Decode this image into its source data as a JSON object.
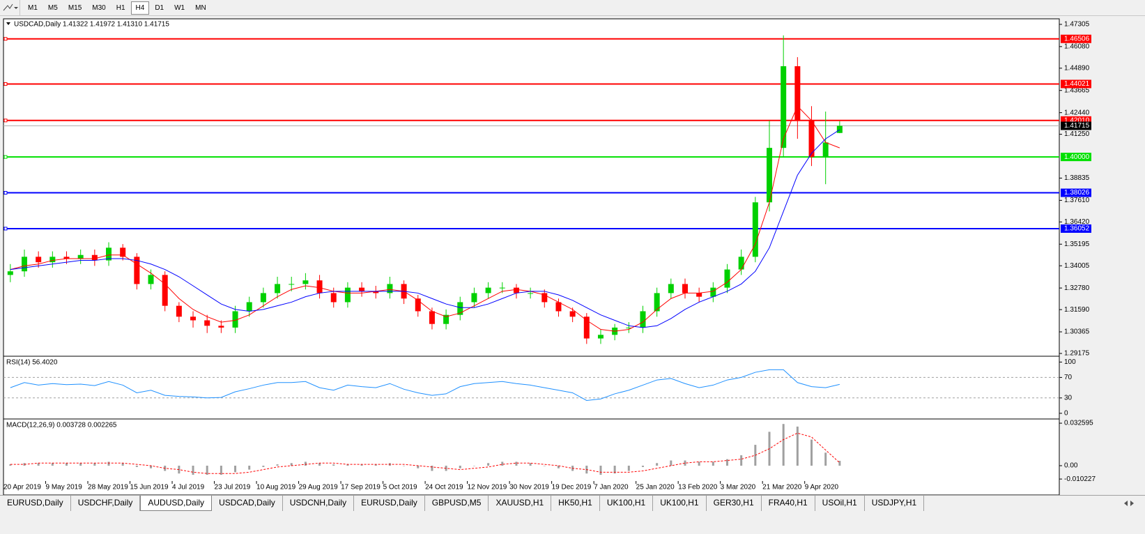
{
  "toolbar": {
    "timeframes": [
      "M1",
      "M5",
      "M15",
      "M30",
      "H1",
      "H4",
      "D1",
      "W1",
      "MN"
    ]
  },
  "tabs": [
    "EURUSD,Daily",
    "USDCHF,Daily",
    "AUDUSD,Daily",
    "USDCAD,Daily",
    "USDCNH,Daily",
    "EURUSD,Daily",
    "GBPUSD,M5",
    "XAUUSD,H1",
    "HK50,H1",
    "UK100,H1",
    "UK100,H1",
    "GER30,H1",
    "FRA40,H1",
    "USOil,H1",
    "USDJPY,H1"
  ],
  "chart_data": [
    {
      "type": "candlestick",
      "title": "USDCAD,Daily  1.41322 1.41972 1.41310 1.41715",
      "categories": [
        null,
        "20 Apr 2019",
        null,
        null,
        "9 May 2019",
        null,
        null,
        "28 May 2019",
        null,
        null,
        "15 Jun 2019",
        null,
        null,
        "4 Jul 2019",
        null,
        null,
        "23 Jul 2019",
        null,
        null,
        "10 Aug 2019",
        null,
        null,
        "29 Aug 2019",
        null,
        null,
        "17 Sep 2019",
        null,
        null,
        "5 Oct 2019",
        null,
        null,
        "24 Oct 2019",
        null,
        null,
        "12 Nov 2019",
        null,
        null,
        "30 Nov 2019",
        null,
        null,
        "19 Dec 2019",
        null,
        null,
        "7 Jan 2020",
        null,
        null,
        "25 Jan 2020",
        null,
        null,
        "13 Feb 2020",
        null,
        null,
        "3 Mar 2020",
        null,
        null,
        "21 Mar 2020",
        null,
        null,
        "9 Apr 2020",
        null
      ],
      "open": [
        1.335,
        1.337,
        1.345,
        1.342,
        1.345,
        1.344,
        1.346,
        1.343,
        1.35,
        1.345,
        1.33,
        1.335,
        1.318,
        1.312,
        1.31,
        1.307,
        1.306,
        1.315,
        1.32,
        1.325,
        1.33,
        1.33,
        1.332,
        1.325,
        1.32,
        1.328,
        1.326,
        1.325,
        1.33,
        1.322,
        1.315,
        1.308,
        1.313,
        1.32,
        1.325,
        1.328,
        1.328,
        1.325,
        1.325,
        1.32,
        1.315,
        1.312,
        1.3,
        1.302,
        1.306,
        1.306,
        1.315,
        1.325,
        1.33,
        1.325,
        1.323,
        1.328,
        1.338,
        1.345,
        1.375,
        1.405,
        1.45,
        1.42,
        1.4,
        1.41322
      ],
      "high": [
        1.341,
        1.349,
        1.348,
        1.348,
        1.348,
        1.349,
        1.349,
        1.353,
        1.352,
        1.347,
        1.338,
        1.337,
        1.32,
        1.315,
        1.313,
        1.31,
        1.318,
        1.323,
        1.328,
        1.334,
        1.334,
        1.336,
        1.335,
        1.328,
        1.331,
        1.331,
        1.329,
        1.334,
        1.332,
        1.324,
        1.317,
        1.316,
        1.323,
        1.328,
        1.331,
        1.331,
        1.33,
        1.328,
        1.327,
        1.322,
        1.317,
        1.314,
        1.305,
        1.308,
        1.309,
        1.318,
        1.328,
        1.333,
        1.333,
        1.328,
        1.331,
        1.341,
        1.349,
        1.378,
        1.42,
        1.467,
        1.455,
        1.428,
        1.425,
        1.41972
      ],
      "low": [
        1.331,
        1.334,
        1.339,
        1.339,
        1.341,
        1.341,
        1.34,
        1.34,
        1.343,
        1.327,
        1.327,
        1.315,
        1.309,
        1.306,
        1.303,
        1.303,
        1.303,
        1.312,
        1.317,
        1.322,
        1.326,
        1.327,
        1.322,
        1.317,
        1.317,
        1.323,
        1.322,
        1.322,
        1.319,
        1.312,
        1.305,
        1.305,
        1.31,
        1.317,
        1.322,
        1.325,
        1.322,
        1.322,
        1.317,
        1.312,
        1.309,
        1.297,
        1.297,
        1.299,
        1.303,
        1.303,
        1.312,
        1.322,
        1.322,
        1.32,
        1.32,
        1.325,
        1.335,
        1.342,
        1.37,
        1.4,
        1.41,
        1.395,
        1.385,
        1.4131
      ],
      "close": [
        1.337,
        1.345,
        1.342,
        1.345,
        1.344,
        1.346,
        1.343,
        1.35,
        1.345,
        1.33,
        1.335,
        1.318,
        1.312,
        1.31,
        1.307,
        1.306,
        1.315,
        1.32,
        1.325,
        1.33,
        1.33,
        1.332,
        1.325,
        1.32,
        1.328,
        1.326,
        1.325,
        1.33,
        1.322,
        1.315,
        1.308,
        1.313,
        1.32,
        1.325,
        1.328,
        1.328,
        1.325,
        1.325,
        1.32,
        1.315,
        1.312,
        1.3,
        1.302,
        1.306,
        1.306,
        1.315,
        1.325,
        1.33,
        1.325,
        1.323,
        1.328,
        1.338,
        1.345,
        1.375,
        1.405,
        1.45,
        1.42,
        1.4,
        1.408,
        1.41715
      ],
      "up_color": "#00d000",
      "down_color": "#ff0000",
      "series": [
        {
          "color": "#ff0000",
          "values": [
            1.338,
            1.34,
            1.341,
            1.343,
            1.344,
            1.344,
            1.344,
            1.346,
            1.346,
            1.341,
            1.336,
            1.33,
            1.322,
            1.316,
            1.312,
            1.309,
            1.31,
            1.313,
            1.318,
            1.323,
            1.327,
            1.329,
            1.328,
            1.326,
            1.325,
            1.325,
            1.326,
            1.327,
            1.326,
            1.321,
            1.315,
            1.312,
            1.314,
            1.318,
            1.322,
            1.326,
            1.327,
            1.326,
            1.324,
            1.32,
            1.316,
            1.31,
            1.305,
            1.304,
            1.305,
            1.309,
            1.316,
            1.322,
            1.325,
            1.325,
            1.326,
            1.331,
            1.338,
            1.352,
            1.375,
            1.41,
            1.428,
            1.42,
            1.408,
            1.405
          ]
        },
        {
          "color": "#0000ff",
          "values": [
            1.338,
            1.339,
            1.34,
            1.341,
            1.342,
            1.343,
            1.343,
            1.344,
            1.344,
            1.343,
            1.341,
            1.338,
            1.334,
            1.329,
            1.324,
            1.319,
            1.316,
            1.315,
            1.316,
            1.318,
            1.32,
            1.323,
            1.325,
            1.326,
            1.326,
            1.326,
            1.326,
            1.326,
            1.326,
            1.325,
            1.322,
            1.319,
            1.317,
            1.317,
            1.319,
            1.322,
            1.325,
            1.326,
            1.326,
            1.324,
            1.321,
            1.317,
            1.313,
            1.31,
            1.307,
            1.306,
            1.307,
            1.311,
            1.316,
            1.32,
            1.323,
            1.326,
            1.33,
            1.337,
            1.35,
            1.37,
            1.39,
            1.402,
            1.41,
            1.415
          ]
        }
      ],
      "levels": [
        {
          "value": 1.46506,
          "label": "1.46506",
          "color": "#ff0000"
        },
        {
          "value": 1.44021,
          "label": "1.44021",
          "color": "#ff0000"
        },
        {
          "value": 1.4201,
          "label": "1.42010",
          "color": "#ff0000"
        },
        {
          "value": 1.4,
          "label": "1.40000",
          "color": "#00e000"
        },
        {
          "value": 1.38026,
          "label": "1.38026",
          "color": "#0000ff"
        },
        {
          "value": 1.36052,
          "label": "1.36052",
          "color": "#0000ff"
        }
      ],
      "current_price": 1.41715,
      "ylim": [
        1.2906,
        1.4761
      ],
      "yticks": [
        1.47305,
        {
          "value": 1.4608,
          "label": "1.46080"
        },
        {
          "value": 1.4489,
          "label": "1.44890"
        },
        1.43665,
        {
          "value": 1.4244,
          "label": "1.42440"
        },
        {
          "value": 1.4125,
          "label": "1.41250"
        },
        1.38835,
        {
          "value": 1.3761,
          "label": "1.37610"
        },
        {
          "value": 1.3642,
          "label": "1.36420"
        },
        1.35195,
        1.34005,
        {
          "value": 1.3278,
          "label": "1.32780"
        },
        {
          "value": 1.3159,
          "label": "1.31590"
        },
        1.30365,
        1.29175
      ]
    },
    {
      "type": "line",
      "title": "RSI(14) 56.4020",
      "color": "#1e90ff",
      "values": [
        50,
        60,
        55,
        58,
        56,
        57,
        54,
        62,
        55,
        40,
        45,
        35,
        33,
        32,
        30,
        31,
        42,
        48,
        55,
        60,
        60,
        62,
        50,
        45,
        55,
        52,
        50,
        58,
        47,
        40,
        35,
        38,
        52,
        58,
        60,
        62,
        58,
        55,
        50,
        45,
        40,
        25,
        28,
        38,
        45,
        55,
        65,
        68,
        58,
        50,
        55,
        65,
        70,
        80,
        85,
        85,
        60,
        52,
        50,
        56.4
      ],
      "ylim": [
        -7,
        110
      ],
      "yticks": [
        100,
        70,
        30,
        0
      ]
    },
    {
      "type": "macd",
      "title": "MACD(12,26,9) 0.003728 0.002265",
      "series": [
        {
          "kind": "bar",
          "color": "#a0a0a0",
          "values": [
            0.001,
            0.002,
            0.002,
            0.002,
            0.002,
            0.002,
            0.002,
            0.003,
            0.002,
            -0.001,
            -0.002,
            -0.004,
            -0.006,
            -0.007,
            -0.007,
            -0.007,
            -0.005,
            -0.003,
            -0.001,
            0.001,
            0.002,
            0.003,
            0.002,
            0.001,
            0.001,
            0.001,
            0.001,
            0.002,
            0.0,
            -0.002,
            -0.004,
            -0.004,
            -0.002,
            0.0,
            0.002,
            0.003,
            0.003,
            0.002,
            0.0,
            -0.002,
            -0.004,
            -0.006,
            -0.007,
            -0.006,
            -0.004,
            -0.001,
            0.002,
            0.004,
            0.004,
            0.003,
            0.003,
            0.005,
            0.008,
            0.016,
            0.026,
            0.032,
            0.03,
            0.02,
            0.01,
            0.003728
          ]
        },
        {
          "kind": "line",
          "color": "#ff0000",
          "values": [
            0.001,
            0.001,
            0.002,
            0.002,
            0.002,
            0.002,
            0.002,
            0.002,
            0.002,
            0.001,
            0.0,
            -0.002,
            -0.003,
            -0.005,
            -0.006,
            -0.006,
            -0.006,
            -0.005,
            -0.003,
            -0.001,
            0.0,
            0.001,
            0.002,
            0.002,
            0.001,
            0.001,
            0.001,
            0.001,
            0.001,
            0.0,
            -0.001,
            -0.002,
            -0.003,
            -0.002,
            -0.001,
            0.001,
            0.002,
            0.002,
            0.001,
            0.0,
            -0.002,
            -0.003,
            -0.005,
            -0.005,
            -0.005,
            -0.004,
            -0.002,
            0.0,
            0.002,
            0.003,
            0.003,
            0.004,
            0.005,
            0.008,
            0.013,
            0.02,
            0.025,
            0.022,
            0.012,
            0.002265
          ]
        }
      ],
      "ylim": [
        -0.01176,
        0.0353
      ],
      "yticks": [
        0.032595,
        {
          "value": 0,
          "label": "0.00"
        },
        -0.010227
      ]
    }
  ]
}
